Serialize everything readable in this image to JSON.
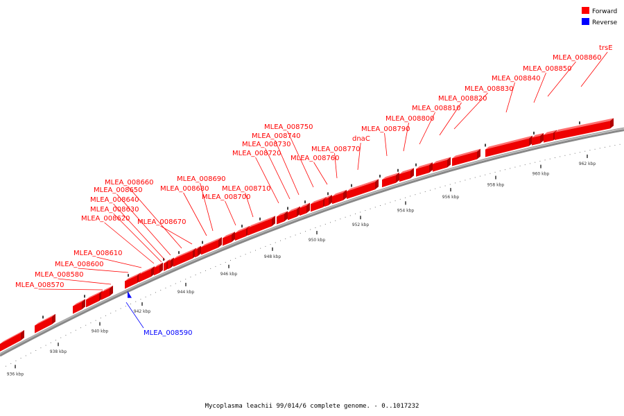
{
  "caption": "Mycoplasma leachii 99/014/6 complete genome. - 0..1017232",
  "legend": [
    {
      "label": "Forward",
      "color": "#ff0000"
    },
    {
      "label": "Reverse",
      "color": "#0000ff"
    }
  ],
  "ticks": [
    "936 kbp",
    "938 kbp",
    "940 kbp",
    "942 kbp",
    "944 kbp",
    "946 kbp",
    "948 kbp",
    "950 kbp",
    "952 kbp",
    "954 kbp",
    "956 kbp",
    "958 kbp",
    "960 kbp",
    "962 kbp"
  ],
  "genes": [
    {
      "label": "MLEA_008570",
      "strand": "forward"
    },
    {
      "label": "MLEA_008580",
      "strand": "forward"
    },
    {
      "label": "MLEA_008590",
      "strand": "reverse"
    },
    {
      "label": "MLEA_008600",
      "strand": "forward"
    },
    {
      "label": "MLEA_008610",
      "strand": "forward"
    },
    {
      "label": "MLEA_008620",
      "strand": "forward"
    },
    {
      "label": "MLEA_008630",
      "strand": "forward"
    },
    {
      "label": "MLEA_008640",
      "strand": "forward"
    },
    {
      "label": "MLEA_008650",
      "strand": "forward"
    },
    {
      "label": "MLEA_008660",
      "strand": "forward"
    },
    {
      "label": "MLEA_008670",
      "strand": "forward"
    },
    {
      "label": "MLEA_008680",
      "strand": "forward"
    },
    {
      "label": "MLEA_008690",
      "strand": "forward"
    },
    {
      "label": "MLEA_008700",
      "strand": "forward"
    },
    {
      "label": "MLEA_008710",
      "strand": "forward"
    },
    {
      "label": "MLEA_008720",
      "strand": "forward"
    },
    {
      "label": "MLEA_008730",
      "strand": "forward"
    },
    {
      "label": "MLEA_008740",
      "strand": "forward"
    },
    {
      "label": "MLEA_008750",
      "strand": "forward"
    },
    {
      "label": "MLEA_008760",
      "strand": "forward"
    },
    {
      "label": "MLEA_008770",
      "strand": "forward"
    },
    {
      "label": "dnaC",
      "strand": "forward"
    },
    {
      "label": "MLEA_008790",
      "strand": "forward"
    },
    {
      "label": "MLEA_008800",
      "strand": "forward"
    },
    {
      "label": "MLEA_008810",
      "strand": "forward"
    },
    {
      "label": "MLEA_008820",
      "strand": "forward"
    },
    {
      "label": "MLEA_008830",
      "strand": "forward"
    },
    {
      "label": "MLEA_008840",
      "strand": "forward"
    },
    {
      "label": "MLEA_008850",
      "strand": "forward"
    },
    {
      "label": "MLEA_008860",
      "strand": "forward"
    },
    {
      "label": "trsE",
      "strand": "forward"
    }
  ]
}
